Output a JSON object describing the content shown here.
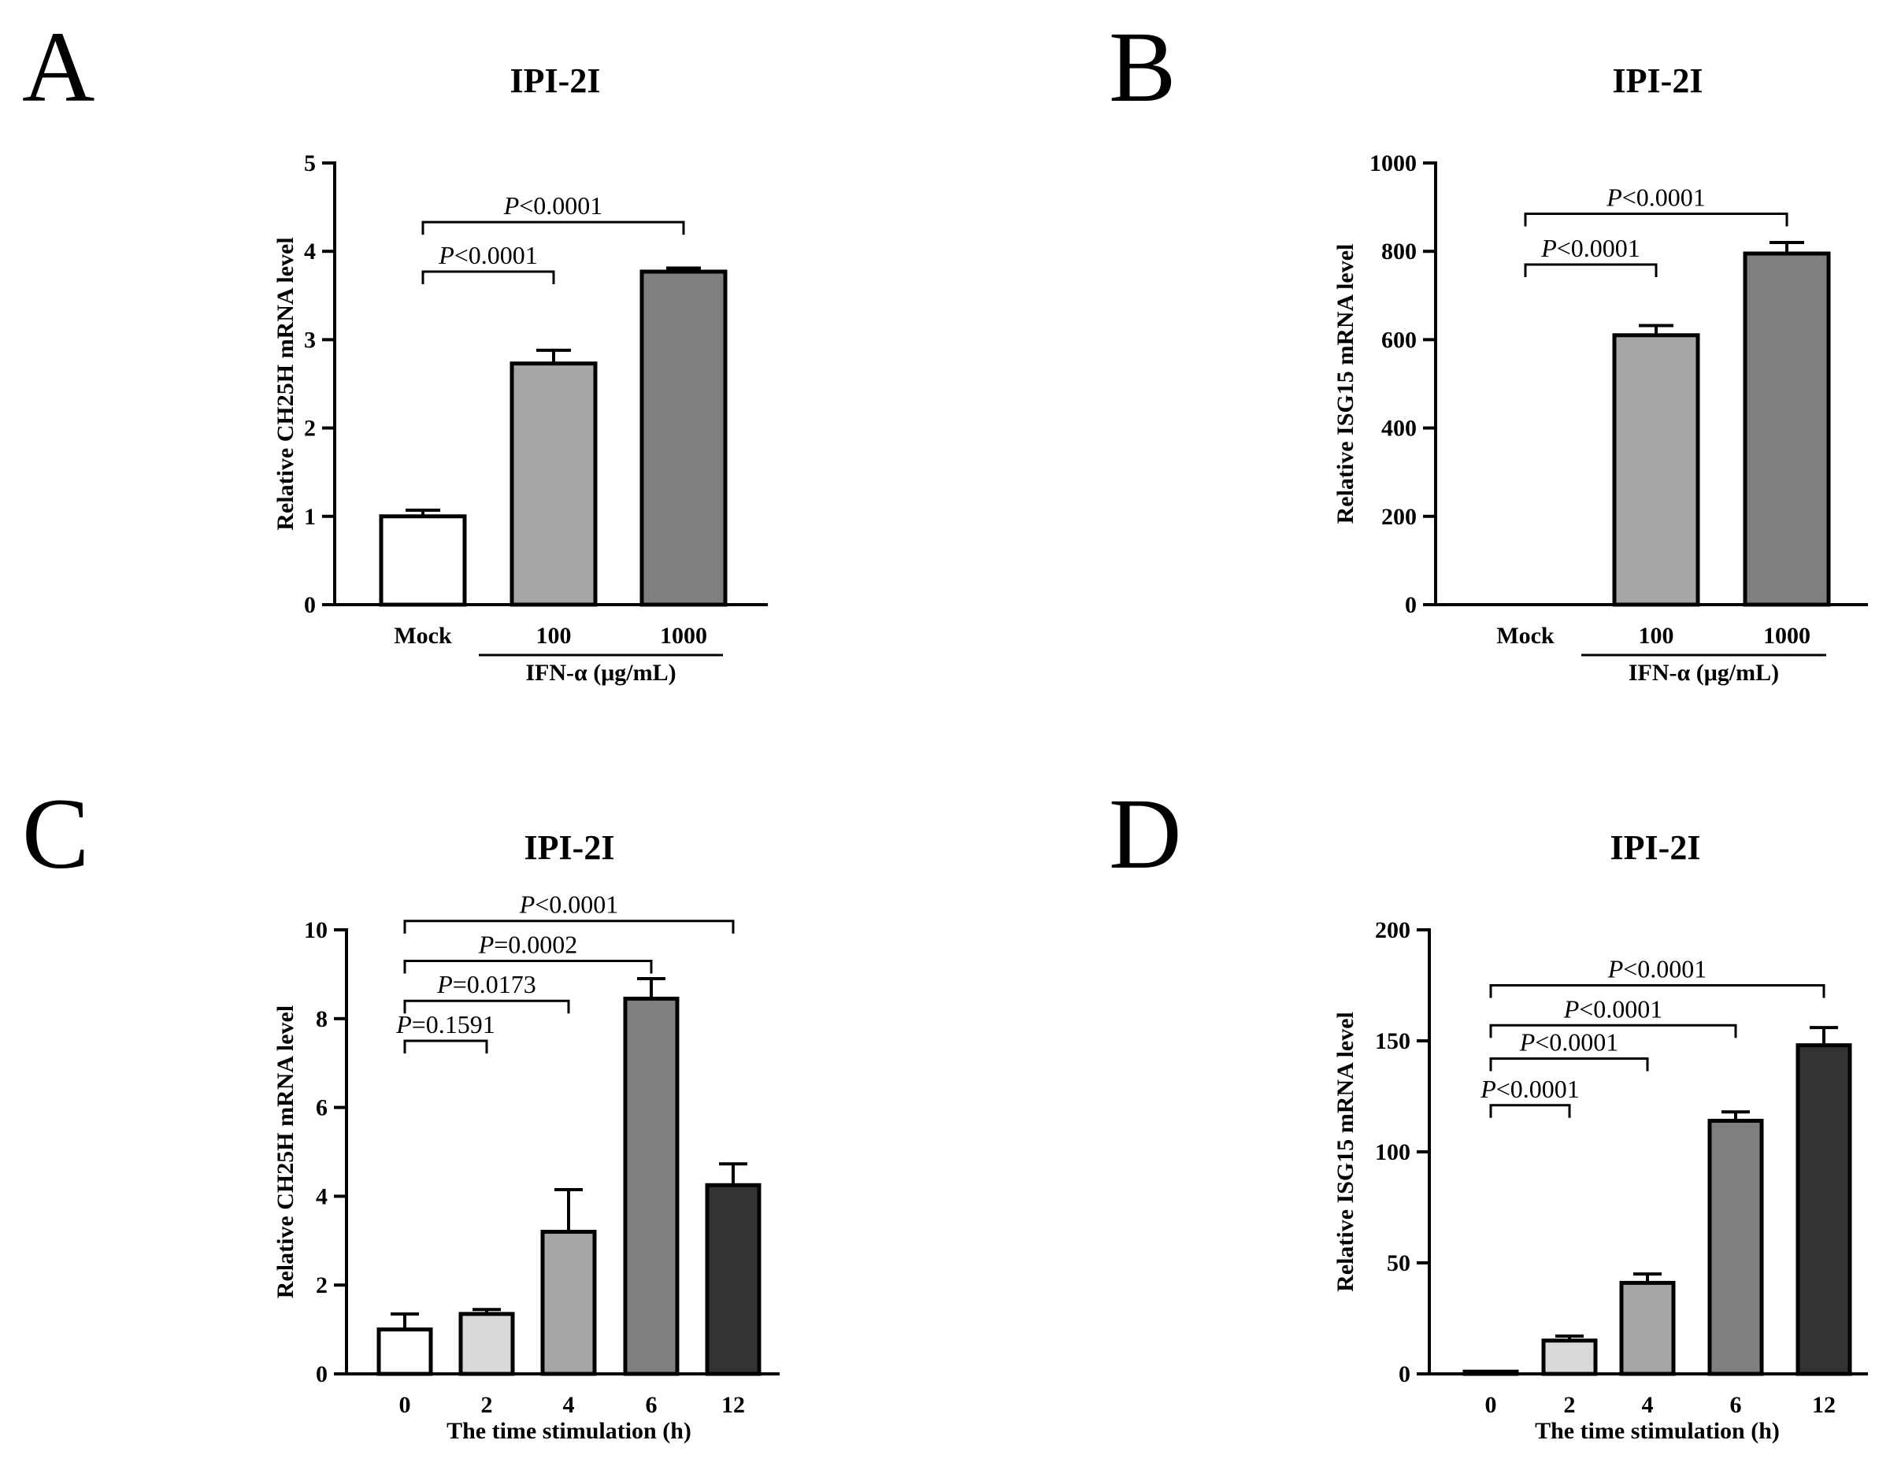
{
  "chart_data": [
    {
      "panel": "A",
      "type": "bar",
      "title": "IPI-2I",
      "ylabel": "Relative CH25H mRNA level",
      "ylim": [
        0,
        5
      ],
      "yticks": [
        0,
        1,
        2,
        3,
        4,
        5
      ],
      "categories": [
        "Mock",
        "100",
        "1000"
      ],
      "values": [
        1.0,
        2.73,
        3.77
      ],
      "errors": [
        0.07,
        0.15,
        0.04
      ],
      "colors": [
        "#ffffff",
        "#a6a6a8",
        "#7f7f7f"
      ],
      "group_label": "IFN-α (μg/mL)",
      "group_span": [
        1,
        2
      ],
      "xlabel": "",
      "comparisons": [
        {
          "from": 0,
          "to": 1,
          "text": "P<0.0001",
          "y": 3.77
        },
        {
          "from": 0,
          "to": 2,
          "text": "P<0.0001",
          "y": 4.33
        }
      ]
    },
    {
      "panel": "B",
      "type": "bar",
      "title": "IPI-2I",
      "ylabel": "Relative ISG15 mRNA level",
      "ylim": [
        0,
        1000
      ],
      "yticks": [
        0,
        200,
        400,
        600,
        800,
        1000
      ],
      "categories": [
        "Mock",
        "100",
        "1000"
      ],
      "values": [
        1,
        610,
        795
      ],
      "errors": [
        0,
        22,
        25
      ],
      "colors": [
        "#ffffff",
        "#a6a6a8",
        "#7f7f7f"
      ],
      "group_label": "IFN-α (μg/mL)",
      "group_span": [
        1,
        2
      ],
      "xlabel": "",
      "comparisons": [
        {
          "from": 0,
          "to": 1,
          "text": "P<0.0001",
          "y": 770
        },
        {
          "from": 0,
          "to": 2,
          "text": "P<0.0001",
          "y": 885
        }
      ]
    },
    {
      "panel": "C",
      "type": "bar",
      "title": "IPI-2I",
      "ylabel": "Relative CH25H mRNA level",
      "ylim": [
        0,
        10
      ],
      "yticks": [
        0,
        2,
        4,
        6,
        8,
        10
      ],
      "categories": [
        "0",
        "2",
        "4",
        "6",
        "12"
      ],
      "values": [
        1.0,
        1.35,
        3.2,
        8.45,
        4.25
      ],
      "errors": [
        0.35,
        0.1,
        0.95,
        0.45,
        0.48
      ],
      "colors": [
        "#ffffff",
        "#d9d9d9",
        "#a6a6a8",
        "#7f7f7f",
        "#333333"
      ],
      "xlabel": "The time stimulation (h)",
      "comparisons": [
        {
          "from": 0,
          "to": 1,
          "text": "P=0.1591",
          "y": 7.5
        },
        {
          "from": 0,
          "to": 2,
          "text": "P=0.0173",
          "y": 8.4
        },
        {
          "from": 0,
          "to": 3,
          "text": "P=0.0002",
          "y": 9.3
        },
        {
          "from": 0,
          "to": 4,
          "text": "P<0.0001",
          "y": 10.2
        }
      ]
    },
    {
      "panel": "D",
      "type": "bar",
      "title": "IPI-2I",
      "ylabel": "Relative ISG15 mRNA level",
      "ylim": [
        0,
        200
      ],
      "yticks": [
        0,
        50,
        100,
        150,
        200
      ],
      "categories": [
        "0",
        "2",
        "4",
        "6",
        "12"
      ],
      "values": [
        1,
        15,
        41,
        114,
        148
      ],
      "errors": [
        0,
        2,
        4,
        4,
        8
      ],
      "colors": [
        "#ffffff",
        "#d9d9d9",
        "#a6a6a8",
        "#7f7f7f",
        "#333333"
      ],
      "xlabel": "The time stimulation (h)",
      "comparisons": [
        {
          "from": 0,
          "to": 1,
          "text": "P<0.0001",
          "y": 121
        },
        {
          "from": 0,
          "to": 2,
          "text": "P<0.0001",
          "y": 142
        },
        {
          "from": 0,
          "to": 3,
          "text": "P<0.0001",
          "y": 157
        },
        {
          "from": 0,
          "to": 4,
          "text": "P<0.0001",
          "y": 175
        }
      ]
    }
  ]
}
